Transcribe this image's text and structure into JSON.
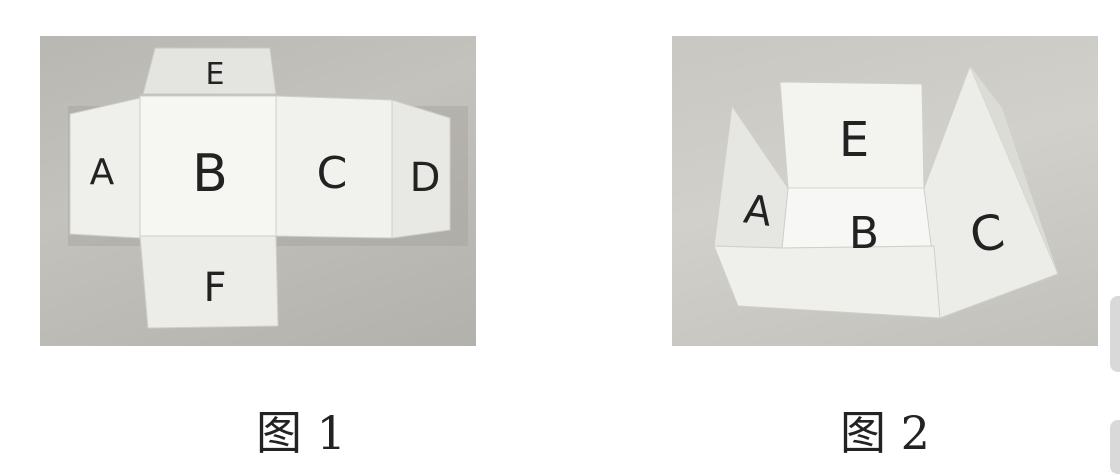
{
  "figures": [
    {
      "caption": "图 1",
      "faces": {
        "top": "E",
        "left": "A",
        "center": "B",
        "right": "C",
        "far_right": "D",
        "bottom": "F"
      }
    },
    {
      "caption": "图 2",
      "faces": {
        "back": "E",
        "left": "A",
        "bottom": "B",
        "right": "C"
      }
    }
  ],
  "colors": {
    "paper": "#f2f2f0",
    "paper_shade": "#e0e0dc",
    "ink": "#222222"
  }
}
